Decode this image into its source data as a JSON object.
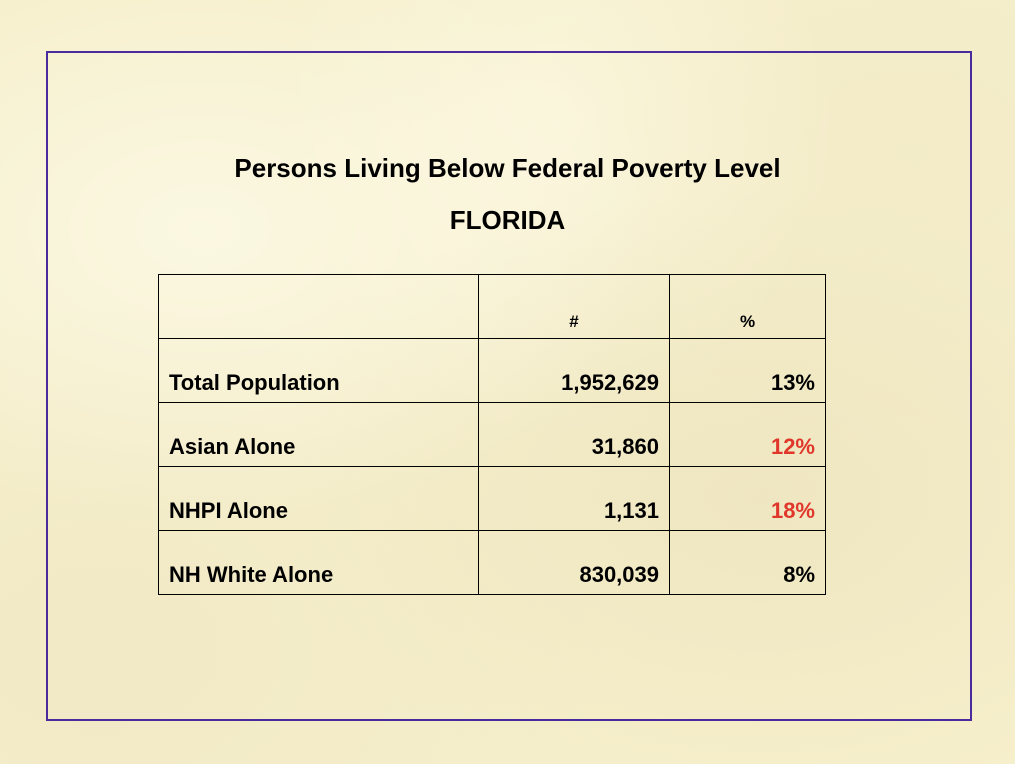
{
  "title": "Persons Living Below Federal Poverty Level",
  "subtitle": "FLORIDA",
  "table": {
    "headers": [
      "",
      "#",
      "%"
    ],
    "rows": [
      {
        "label": "Total Population",
        "count": "1,952,629",
        "percent": "13%",
        "percent_color": "#000000"
      },
      {
        "label": "Asian Alone",
        "count": "31,860",
        "percent": "12%",
        "percent_color": "#e0362b"
      },
      {
        "label": "NHPI Alone",
        "count": "1,131",
        "percent": "18%",
        "percent_color": "#e0362b"
      },
      {
        "label": "NH White Alone",
        "count": "830,039",
        "percent": "8%",
        "percent_color": "#000000"
      }
    ]
  },
  "colors": {
    "background": "#f6efcb",
    "frame_border": "#4a2a9c",
    "highlight": "#e0362b"
  }
}
